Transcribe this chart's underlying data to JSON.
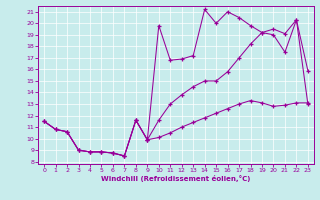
{
  "background_color": "#c8ecec",
  "line_color": "#990099",
  "grid_color": "#ffffff",
  "xlabel": "Windchill (Refroidissement éolien,°C)",
  "xlim": [
    -0.5,
    23.5
  ],
  "ylim": [
    7.8,
    21.5
  ],
  "xticks": [
    0,
    1,
    2,
    3,
    4,
    5,
    6,
    7,
    8,
    9,
    10,
    11,
    12,
    13,
    14,
    15,
    16,
    17,
    18,
    19,
    20,
    21,
    22,
    23
  ],
  "yticks": [
    8,
    9,
    10,
    11,
    12,
    13,
    14,
    15,
    16,
    17,
    18,
    19,
    20,
    21
  ],
  "line1_x": [
    0,
    1,
    2,
    3,
    4,
    5,
    6,
    7,
    8,
    9,
    10,
    11,
    12,
    13,
    14,
    15,
    16,
    17,
    18,
    19,
    20,
    21,
    22,
    23
  ],
  "line1_y": [
    11.5,
    10.8,
    10.6,
    9.0,
    8.85,
    8.85,
    8.75,
    8.5,
    11.6,
    9.9,
    10.1,
    10.5,
    11.0,
    11.4,
    11.8,
    12.2,
    12.6,
    13.0,
    13.3,
    13.1,
    12.8,
    12.9,
    13.1,
    13.1
  ],
  "line2_x": [
    0,
    1,
    2,
    3,
    4,
    5,
    6,
    7,
    8,
    9,
    10,
    11,
    12,
    13,
    14,
    15,
    16,
    17,
    18,
    19,
    20,
    21,
    22,
    23
  ],
  "line2_y": [
    11.5,
    10.8,
    10.6,
    9.0,
    8.85,
    8.85,
    8.75,
    8.5,
    11.6,
    9.9,
    11.6,
    13.0,
    13.8,
    14.5,
    15.0,
    15.0,
    15.8,
    17.0,
    18.2,
    19.2,
    19.5,
    19.1,
    20.3,
    13.0
  ],
  "line3_x": [
    0,
    1,
    2,
    3,
    4,
    5,
    6,
    7,
    8,
    9,
    10,
    11,
    12,
    13,
    14,
    15,
    16,
    17,
    18,
    19,
    20,
    21,
    22,
    23
  ],
  "line3_y": [
    11.5,
    10.8,
    10.6,
    9.0,
    8.85,
    8.85,
    8.75,
    8.5,
    11.6,
    9.9,
    19.8,
    16.8,
    16.9,
    17.2,
    21.2,
    20.0,
    21.0,
    20.5,
    19.8,
    19.2,
    19.0,
    17.5,
    20.3,
    15.9
  ],
  "figsize": [
    3.2,
    2.0
  ],
  "dpi": 100
}
